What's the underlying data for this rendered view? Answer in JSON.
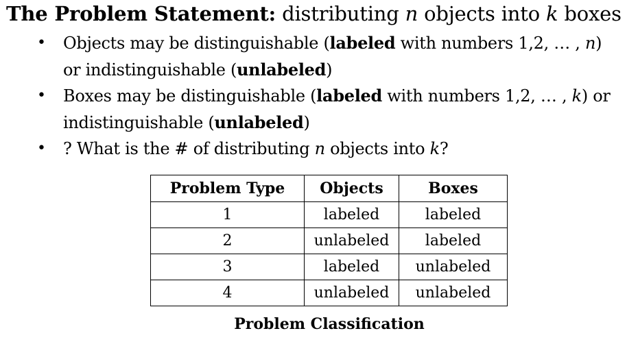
{
  "title": {
    "bold": "The Problem Statement:",
    "t1": " distributing ",
    "n": "n",
    "t2": " objects into ",
    "k": "k",
    "t3": " boxes"
  },
  "bullets": [
    {
      "a": "Objects may be distinguishable (",
      "b": "labeled",
      "c": " with numbers 1,2, … , ",
      "m": "n",
      "d": ") or indistinguishable (",
      "e": "unlabeled",
      "f": ")"
    },
    {
      "a": "Boxes may be distinguishable (",
      "b": "labeled",
      "c": " with numbers 1,2, … , ",
      "m": "k",
      "d": ") or indistinguishable (",
      "e": "unlabeled",
      "f": ")"
    },
    {
      "a": "? What is the # of distributing ",
      "m": "n",
      "c": " objects into ",
      "m2": "k",
      "d": "?"
    }
  ],
  "bullet_glyph": "•",
  "table": {
    "headers": [
      "Problem Type",
      "Objects",
      "Boxes"
    ],
    "rows": [
      [
        "1",
        "labeled",
        "labeled"
      ],
      [
        "2",
        "unlabeled",
        "labeled"
      ],
      [
        "3",
        "labeled",
        "unlabeled"
      ],
      [
        "4",
        "unlabeled",
        "unlabeled"
      ]
    ]
  },
  "caption": "Problem Classification"
}
